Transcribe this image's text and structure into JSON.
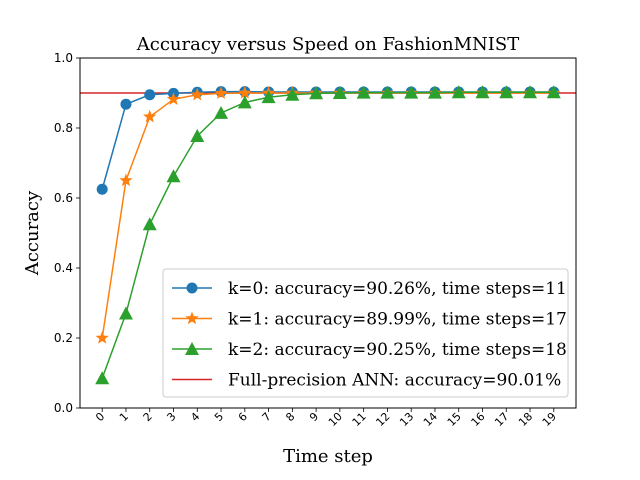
{
  "chart_data": {
    "type": "line",
    "title": "Accuracy versus Speed on FashionMNIST",
    "xlabel": "Time step",
    "ylabel": "Accuracy",
    "xlim": [
      0,
      19
    ],
    "ylim": [
      0.0,
      1.0
    ],
    "x": [
      0,
      1,
      2,
      3,
      4,
      5,
      6,
      7,
      8,
      9,
      10,
      11,
      12,
      13,
      14,
      15,
      16,
      17,
      18,
      19
    ],
    "x_tick_labels": [
      "0",
      "1",
      "2",
      "3",
      "4",
      "5",
      "6",
      "7",
      "8",
      "9",
      "10",
      "11",
      "12",
      "13",
      "14",
      "15",
      "16",
      "17",
      "18",
      "19"
    ],
    "y_ticks": [
      0.0,
      0.2,
      0.4,
      0.6,
      0.8,
      1.0
    ],
    "y_tick_labels": [
      "0.0",
      "0.2",
      "0.4",
      "0.6",
      "0.8",
      "1.0"
    ],
    "grid": false,
    "legend_position": "bottom-right",
    "series": [
      {
        "name": "k=0: accuracy=90.26%, time steps=11",
        "color": "#1f77b4",
        "marker": "circle",
        "values": [
          0.625,
          0.868,
          0.895,
          0.899,
          0.902,
          0.904,
          0.904,
          0.903,
          0.903,
          0.903,
          0.903,
          0.903,
          0.903,
          0.903,
          0.903,
          0.903,
          0.903,
          0.903,
          0.903,
          0.903
        ]
      },
      {
        "name": "k=1: accuracy=89.99%, time steps=17",
        "color": "#ff7f0e",
        "marker": "star",
        "values": [
          0.2,
          0.65,
          0.832,
          0.882,
          0.895,
          0.899,
          0.9,
          0.9,
          0.9,
          0.9,
          0.9,
          0.9,
          0.9,
          0.9,
          0.9,
          0.9,
          0.9,
          0.9,
          0.9,
          0.9
        ]
      },
      {
        "name": "k=2: accuracy=90.25%, time steps=18",
        "color": "#2ca02c",
        "marker": "triangle",
        "values": [
          0.085,
          0.27,
          0.525,
          0.662,
          0.777,
          0.843,
          0.873,
          0.888,
          0.895,
          0.899,
          0.9,
          0.901,
          0.901,
          0.901,
          0.901,
          0.902,
          0.902,
          0.902,
          0.902,
          0.902
        ]
      }
    ],
    "reference_line": {
      "name": "Full-precision ANN: accuracy=90.01%",
      "color": "#d62728",
      "value": 0.9001
    }
  }
}
